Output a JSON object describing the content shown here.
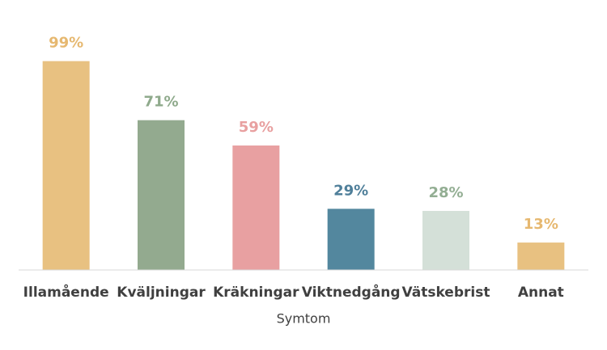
{
  "chart_data": {
    "type": "bar",
    "x_label": "Symtom",
    "categories": [
      "Illamående",
      "Kväljningar",
      "Kräkningar",
      "Viktnedgång",
      "Vätskebrist",
      "Annat"
    ],
    "values": [
      99,
      71,
      59,
      29,
      28,
      13
    ],
    "value_labels": [
      "99%",
      "71%",
      "59%",
      "29%",
      "28%",
      "13%"
    ],
    "colors": [
      "#e8c181",
      "#93aa8f",
      "#e8a0a1",
      "#53879e",
      "#d4e0d8",
      "#e8c181"
    ],
    "label_colors": [
      "#e6b870",
      "#8faa8c",
      "#e8a0a0",
      "#4f7f9a",
      "#93ae93",
      "#e6b870"
    ],
    "ylim": [
      0,
      100
    ]
  }
}
